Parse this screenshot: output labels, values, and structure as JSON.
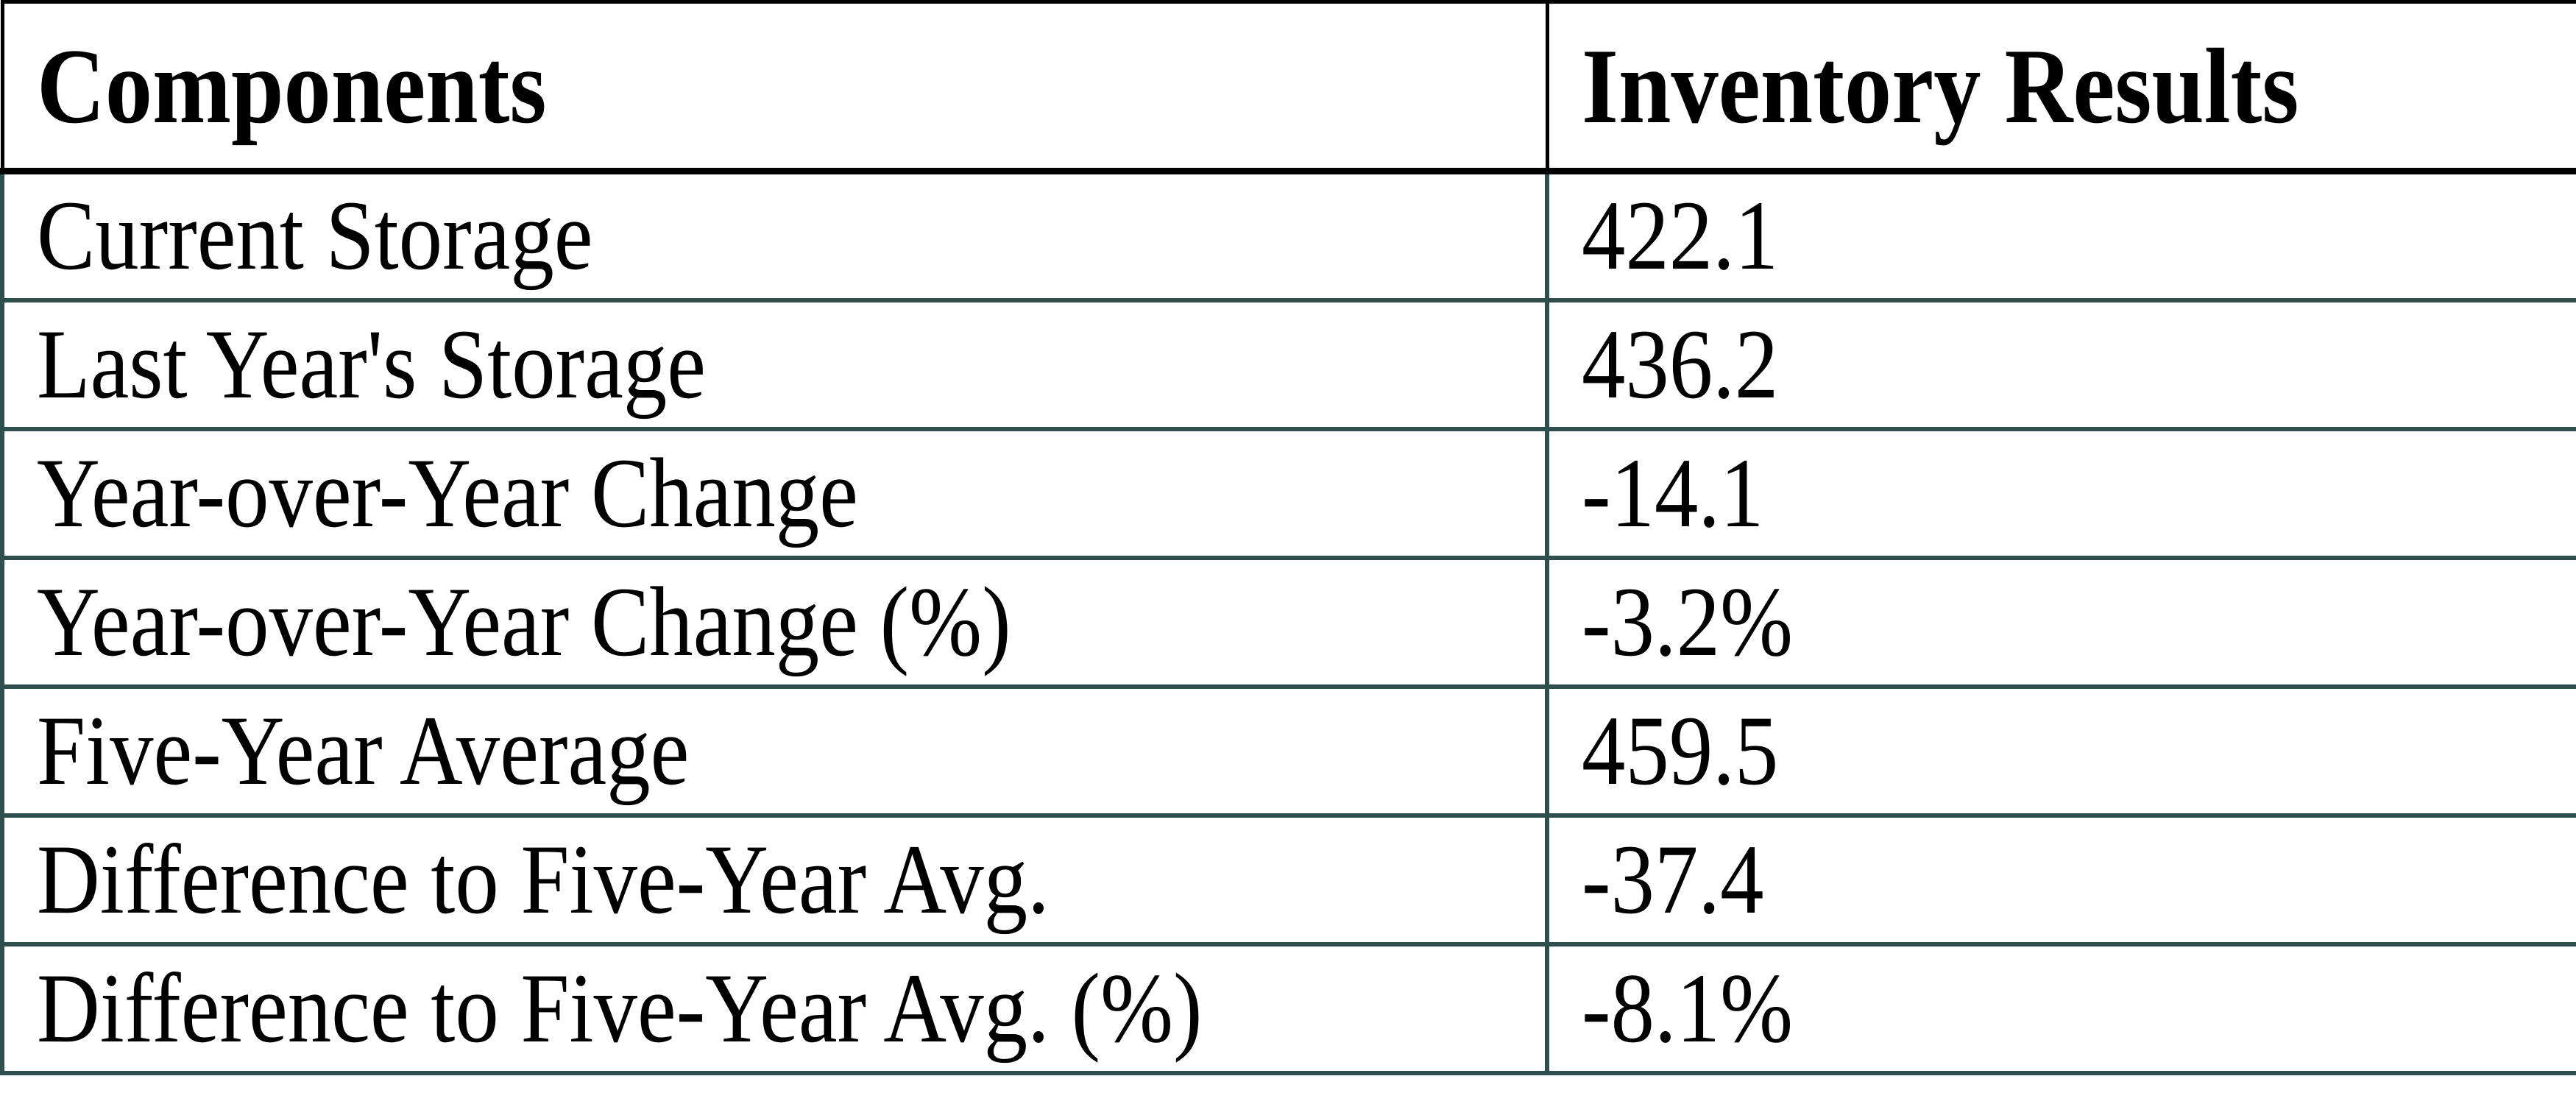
{
  "colors": {
    "background": "#FFFFFF",
    "text": "#000000",
    "header_border": "#000000",
    "body_border": "#2F4F4F"
  },
  "table": {
    "columns": [
      {
        "label": "Components"
      },
      {
        "label": "Inventory Results"
      }
    ],
    "rows": [
      {
        "label": "Current Storage",
        "value": "422.1"
      },
      {
        "label": "Last Year's Storage",
        "value": "436.2"
      },
      {
        "label": "Year-over-Year Change",
        "value": "-14.1"
      },
      {
        "label": "Year-over-Year Change (%)",
        "value": "-3.2%"
      },
      {
        "label": "Five-Year Average",
        "value": "459.5"
      },
      {
        "label": "Difference to Five-Year Avg.",
        "value": "-37.4"
      },
      {
        "label": "Difference to Five-Year Avg. (%)",
        "value": "-8.1%"
      }
    ]
  },
  "chart_data": {
    "type": "table",
    "columns": [
      "Components",
      "Inventory Results"
    ],
    "rows": [
      [
        "Current Storage",
        "422.1"
      ],
      [
        "Last Year's Storage",
        "436.2"
      ],
      [
        "Year-over-Year Change",
        "-14.1"
      ],
      [
        "Year-over-Year Change (%)",
        "-3.2%"
      ],
      [
        "Five-Year Average",
        "459.5"
      ],
      [
        "Difference to Five-Year Avg.",
        "-37.4"
      ],
      [
        "Difference to Five-Year Avg. (%)",
        "-8.1%"
      ]
    ]
  }
}
